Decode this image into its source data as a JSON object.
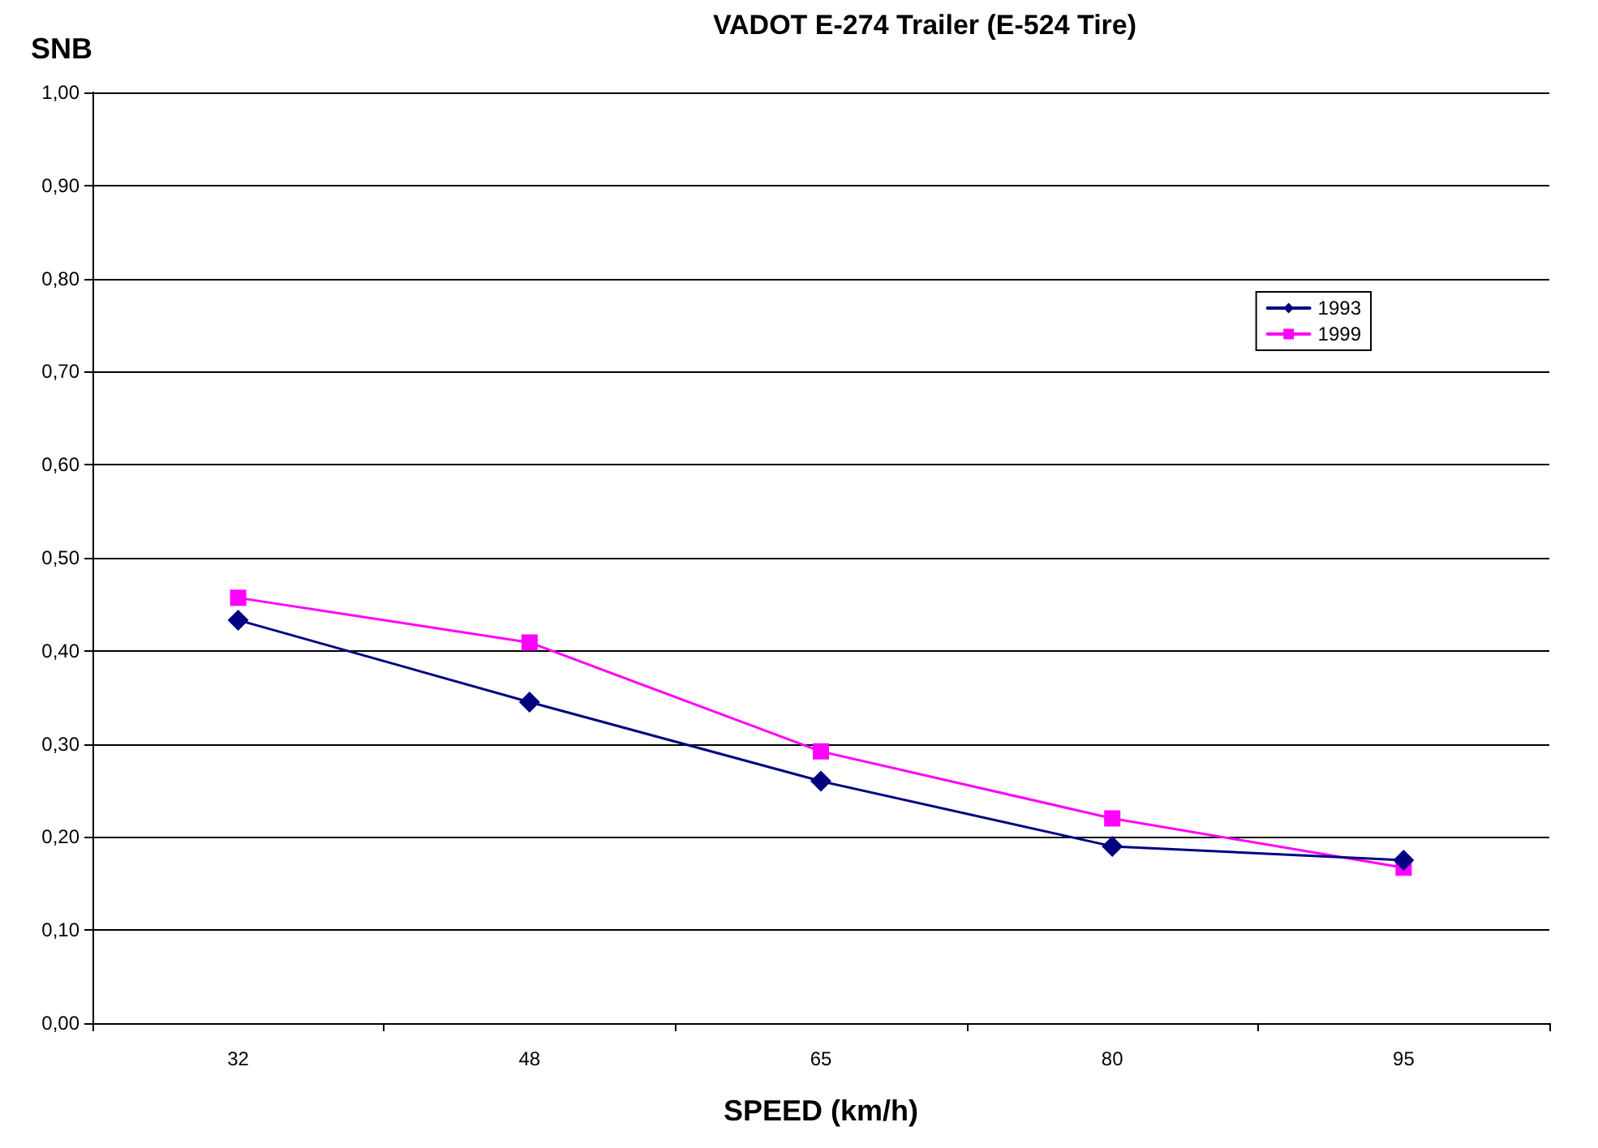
{
  "chart_data": {
    "type": "line",
    "title": "VADOT E-274 Trailer (E-524 Tire)",
    "xlabel": "SPEED (km/h)",
    "ylabel": "SNB",
    "categories": [
      "32",
      "48",
      "65",
      "80",
      "95"
    ],
    "series": [
      {
        "name": "1993",
        "color": "#000080",
        "marker": "diamond",
        "values": [
          0.433,
          0.345,
          0.26,
          0.19,
          0.175
        ]
      },
      {
        "name": "1999",
        "color": "#ff00ff",
        "marker": "square",
        "values": [
          0.457,
          0.409,
          0.292,
          0.22,
          0.167
        ]
      }
    ],
    "ylim": [
      0,
      1
    ],
    "yticks": [
      {
        "value": 0,
        "label": "0,00"
      },
      {
        "value": 0.1,
        "label": "0,10"
      },
      {
        "value": 0.2,
        "label": "0,20"
      },
      {
        "value": 0.3,
        "label": "0,30"
      },
      {
        "value": 0.4,
        "label": "0,40"
      },
      {
        "value": 0.5,
        "label": "0,50"
      },
      {
        "value": 0.6,
        "label": "0,60"
      },
      {
        "value": 0.7,
        "label": "0,70"
      },
      {
        "value": 0.8,
        "label": "0,80"
      },
      {
        "value": 0.9,
        "label": "0,90"
      },
      {
        "value": 1,
        "label": "1,00"
      }
    ],
    "grid": "y",
    "legend": "top right",
    "line_style": "solid"
  }
}
